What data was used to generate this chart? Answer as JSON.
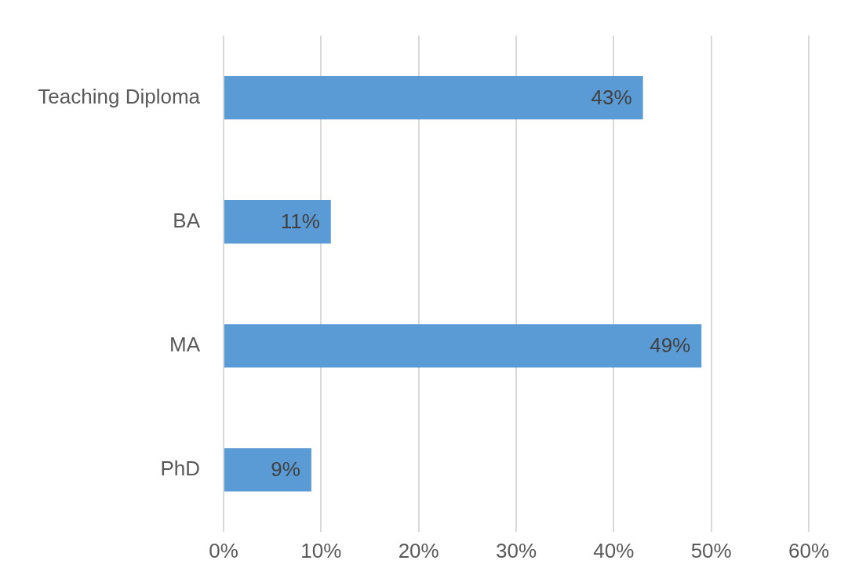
{
  "chart_data": {
    "type": "bar",
    "orientation": "horizontal",
    "categories": [
      "Teaching Diploma",
      "BA",
      "MA",
      "PhD"
    ],
    "values": [
      43,
      11,
      49,
      9
    ],
    "color": "#5b9bd5",
    "value_labels": [
      "43%",
      "11%",
      "49%",
      "9%"
    ],
    "xlim": [
      0,
      60
    ],
    "xticks": [
      {
        "value": 0,
        "label": "0%"
      },
      {
        "value": 10,
        "label": "10%"
      },
      {
        "value": 20,
        "label": "20%"
      },
      {
        "value": 30,
        "label": "30%"
      },
      {
        "value": 40,
        "label": "40%"
      },
      {
        "value": 50,
        "label": "50%"
      },
      {
        "value": 60,
        "label": "60%"
      }
    ],
    "grid": "x",
    "legend": false
  }
}
